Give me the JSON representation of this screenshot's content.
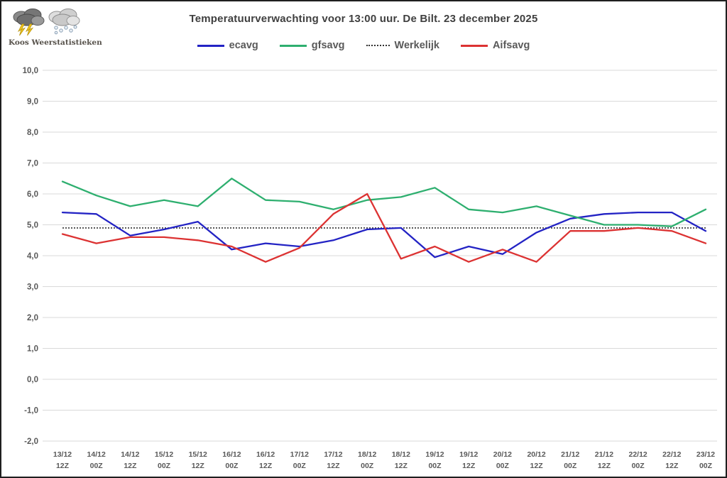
{
  "page": {
    "logo_text": "Koos Weerstatistieken",
    "title": "Temperatuurverwachting voor 13:00 uur. De Bilt. 23 december 2025"
  },
  "colors": {
    "ecavg": "#2323c4",
    "gfsavg": "#2eaf6f",
    "werkelijk": "#333333",
    "aifsavg": "#dc3232",
    "gridline": "#d9d9d9",
    "axis_text": "#595959",
    "title_text": "#3f3f3f",
    "lightning": "#f2c71d",
    "storm_cloud": "#6f6f6f",
    "snow_cloud": "#c9c9c9"
  },
  "chart_data": {
    "type": "line",
    "title": "Temperatuurverwachting voor 13:00 uur. De Bilt. 23 december 2025",
    "xlabel": "",
    "ylabel": "",
    "ylim": [
      -2.0,
      10.0
    ],
    "y_tick_step": 1.0,
    "y_tick_labels": [
      "10,0",
      "9,0",
      "8,0",
      "7,0",
      "6,0",
      "5,0",
      "4,0",
      "3,0",
      "2,0",
      "1,0",
      "0,0",
      "-1,0",
      "-2,0"
    ],
    "grid": true,
    "legend_position": "top",
    "categories": [
      "13/12 12Z",
      "14/12 00Z",
      "14/12 12Z",
      "15/12 00Z",
      "15/12 12Z",
      "16/12 00Z",
      "16/12 12Z",
      "17/12 00Z",
      "17/12 12Z",
      "18/12 00Z",
      "18/12 12Z",
      "19/12 00Z",
      "19/12 12Z",
      "20/12 00Z",
      "20/12 12Z",
      "21/12 00Z",
      "21/12 12Z",
      "22/12 00Z",
      "22/12 12Z",
      "23/12 00Z"
    ],
    "series": [
      {
        "name": "ecavg",
        "style": "solid",
        "color": "#2323c4",
        "values": [
          5.4,
          5.35,
          4.65,
          4.85,
          5.1,
          4.2,
          4.4,
          4.3,
          4.5,
          4.85,
          4.9,
          3.95,
          4.3,
          4.05,
          4.75,
          5.2,
          5.35,
          5.4,
          5.4,
          4.8
        ]
      },
      {
        "name": "gfsavg",
        "style": "solid",
        "color": "#2eaf6f",
        "values": [
          6.4,
          5.95,
          5.6,
          5.8,
          5.6,
          6.5,
          5.8,
          5.75,
          5.5,
          5.8,
          5.9,
          6.2,
          5.5,
          5.4,
          5.6,
          5.3,
          5.0,
          5.0,
          4.95,
          5.5
        ]
      },
      {
        "name": "Werkelijk",
        "style": "dotted",
        "color": "#333333",
        "values": [
          4.9,
          4.9,
          4.9,
          4.9,
          4.9,
          4.9,
          4.9,
          4.9,
          4.9,
          4.9,
          4.9,
          4.9,
          4.9,
          4.9,
          4.9,
          4.9,
          4.9,
          4.9,
          4.9,
          4.9
        ]
      },
      {
        "name": "Aifsavg",
        "style": "solid",
        "color": "#dc3232",
        "values": [
          4.7,
          4.4,
          4.6,
          4.6,
          4.5,
          4.3,
          3.8,
          4.25,
          5.35,
          6.0,
          3.9,
          4.3,
          3.8,
          4.2,
          3.8,
          4.8,
          4.8,
          4.9,
          4.8,
          4.4
        ]
      }
    ]
  }
}
